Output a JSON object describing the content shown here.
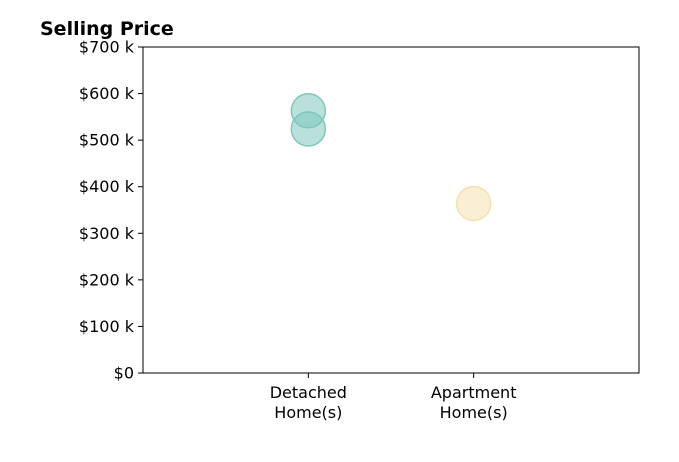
{
  "chart_data": {
    "type": "scatter",
    "title": "Selling Price",
    "xlabel": "",
    "ylabel": "",
    "categories": [
      [
        "Detached",
        "Home(s)"
      ],
      [
        "Apartment",
        "Home(s)"
      ]
    ],
    "x_range": [
      0,
      3
    ],
    "category_positions": [
      1,
      2
    ],
    "ylim": [
      0,
      700000
    ],
    "y_ticks": [
      0,
      100000,
      200000,
      300000,
      400000,
      500000,
      600000,
      700000
    ],
    "y_tick_labels": [
      "$0",
      "$100 k",
      "$200 k",
      "$300 k",
      "$400 k",
      "$500 k",
      "$600 k",
      "$700 k"
    ],
    "grid": false,
    "legend": "none",
    "points": [
      {
        "category": "Detached Home(s)",
        "x": 1,
        "y": 563000,
        "color": "#7fc7bd"
      },
      {
        "category": "Detached Home(s)",
        "x": 1,
        "y": 524000,
        "color": "#7fc7bd"
      },
      {
        "category": "Apartment Home(s)",
        "x": 2,
        "y": 364000,
        "color": "#f5e1b0"
      }
    ]
  }
}
